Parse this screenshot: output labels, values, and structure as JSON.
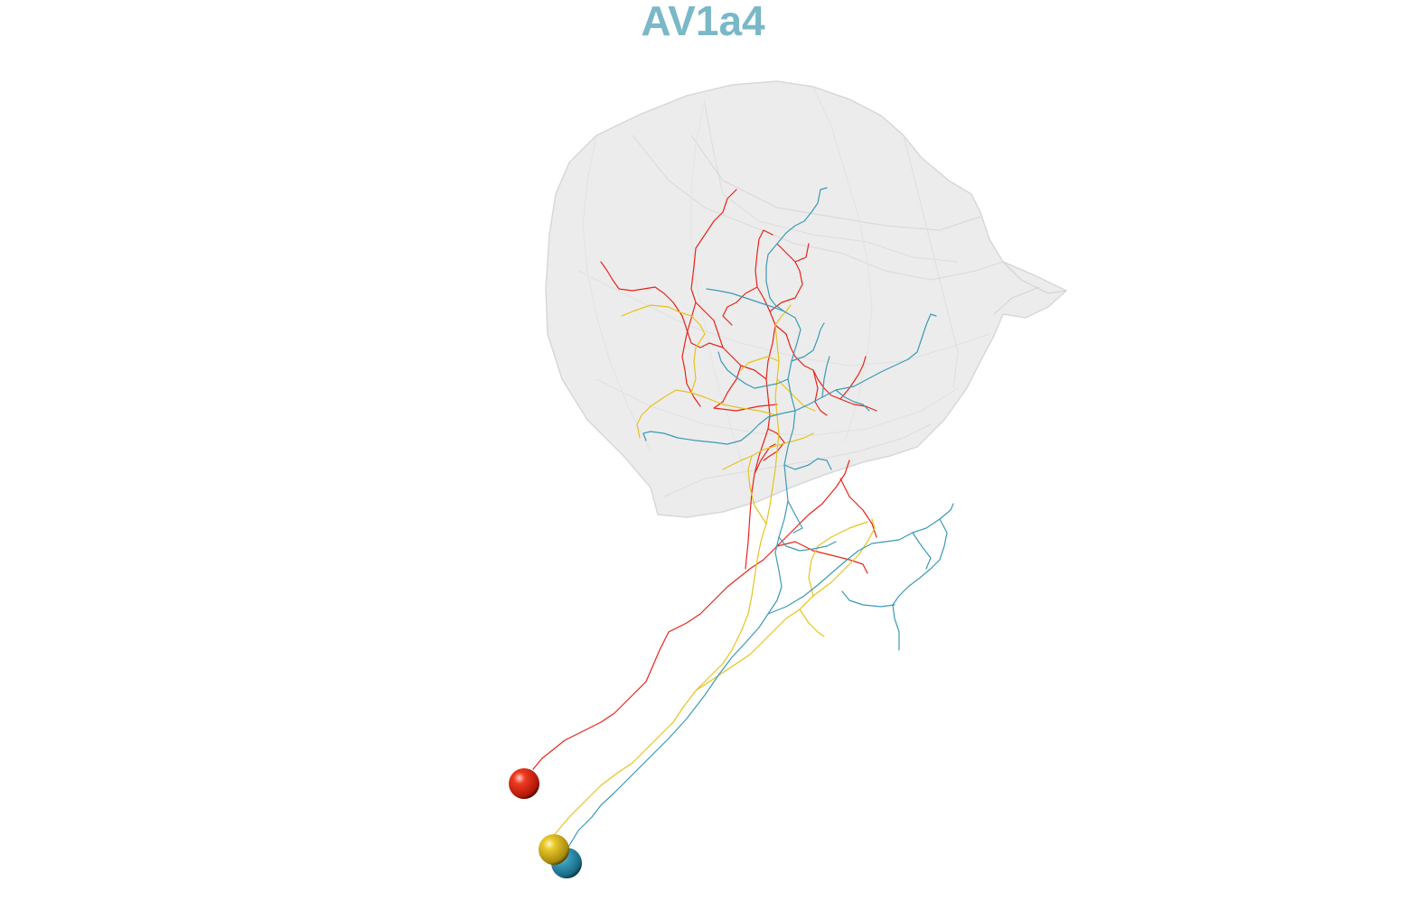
{
  "title": "AV1a4",
  "colors": {
    "title": "#7ab8c8",
    "mesh_fill": "#e9e9e9",
    "mesh_edge": "#d4d4d4",
    "neuron_red": "#e8231a",
    "neuron_yellow": "#e6c31e",
    "neuron_teal": "#3c9ab4"
  },
  "neurons": [
    {
      "name": "red",
      "color_key": "neuron_red",
      "soma_icon": "sphere-icon"
    },
    {
      "name": "yellow",
      "color_key": "neuron_yellow",
      "soma_icon": "sphere-icon"
    },
    {
      "name": "teal",
      "color_key": "neuron_teal",
      "soma_icon": "sphere-icon"
    }
  ]
}
